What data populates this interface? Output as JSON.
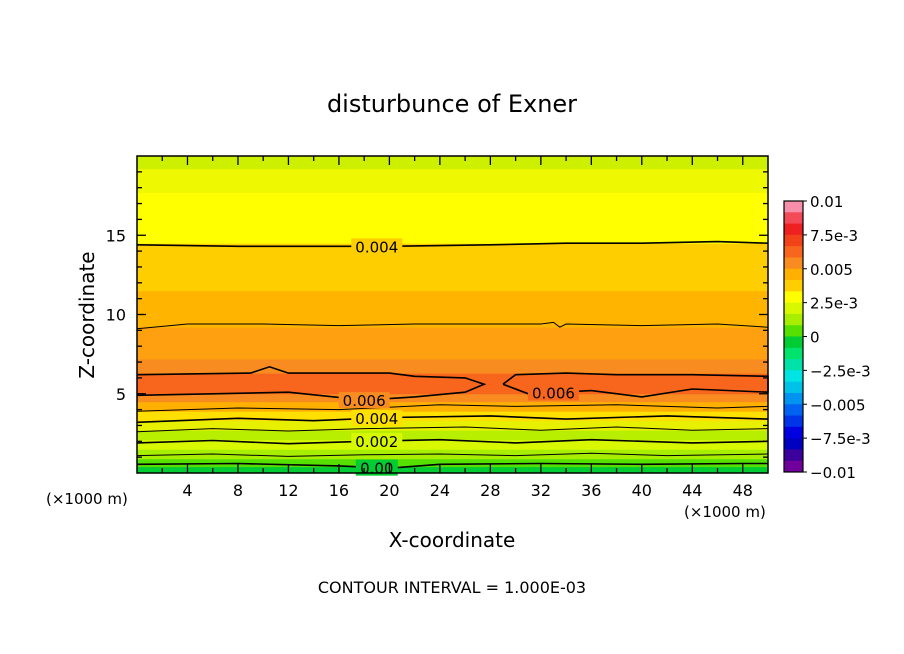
{
  "chart_data": {
    "type": "heatmap",
    "title": "disturbunce of Exner",
    "xlabel": "X-coordinate",
    "ylabel": "Z-coordinate",
    "x_unit_left": "(×1000 m)",
    "x_unit_right": "(×1000 m)",
    "xlim": [
      0,
      50
    ],
    "ylim": [
      0,
      20
    ],
    "x_ticks": [
      "4",
      "8",
      "12",
      "16",
      "20",
      "24",
      "28",
      "32",
      "36",
      "40",
      "44",
      "48"
    ],
    "y_ticks": [
      "5",
      "10",
      "15"
    ],
    "footer": "CONTOUR INTERVAL = 1.000E-03",
    "colorbar": {
      "labels": [
        "0.01",
        "7.5e-3",
        "0.005",
        "2.5e-3",
        "0",
        "−2.5e-3",
        "−0.005",
        "−7.5e-3",
        "−0.01"
      ],
      "range": [
        -0.01,
        0.01
      ],
      "colors": [
        "#f78faa",
        "#f24a56",
        "#ee2020",
        "#f2421a",
        "#f7661c",
        "#f98c20",
        "#ffb000",
        "#ffce00",
        "#ffff00",
        "#d8f800",
        "#a8ee00",
        "#55e000",
        "#00cc33",
        "#00e36c",
        "#00e2a8",
        "#00e4e4",
        "#00c1e8",
        "#0094f0",
        "#0062f0",
        "#0034e8",
        "#0000e0",
        "#0000c0",
        "#3c009c",
        "#70009c"
      ]
    },
    "bands": [
      {
        "z": [
          0.0,
          0.4
        ],
        "value": 0.0,
        "color": "#00cc33"
      },
      {
        "z": [
          0.4,
          0.9
        ],
        "value": 0.0005,
        "color": "#55e000"
      },
      {
        "z": [
          0.9,
          1.5
        ],
        "value": 0.0015,
        "color": "#a8ee00"
      },
      {
        "z": [
          1.5,
          2.1
        ],
        "value": 0.002,
        "color": "#d8f800"
      },
      {
        "z": [
          2.1,
          2.7
        ],
        "value": 0.0025,
        "color": "#b8ee00"
      },
      {
        "z": [
          2.7,
          3.3
        ],
        "value": 0.003,
        "color": "#e6f000"
      },
      {
        "z": [
          3.3,
          3.9
        ],
        "value": 0.004,
        "color": "#ffe000"
      },
      {
        "z": [
          3.9,
          4.5
        ],
        "value": 0.0045,
        "color": "#ffb000"
      },
      {
        "z": [
          4.5,
          5.0
        ],
        "value": 0.0055,
        "color": "#f98c20"
      },
      {
        "z": [
          5.0,
          6.3
        ],
        "value": 0.0065,
        "color": "#f7661c"
      },
      {
        "z": [
          6.3,
          7.2
        ],
        "value": 0.0058,
        "color": "#f98c20"
      },
      {
        "z": [
          7.2,
          9.2
        ],
        "value": 0.0052,
        "color": "#ffa010"
      },
      {
        "z": [
          9.2,
          11.5
        ],
        "value": 0.0048,
        "color": "#ffb400"
      },
      {
        "z": [
          11.5,
          14.5
        ],
        "value": 0.0042,
        "color": "#ffce00"
      },
      {
        "z": [
          14.5,
          17.7
        ],
        "value": 0.0036,
        "color": "#ffff00"
      },
      {
        "z": [
          17.7,
          19.2
        ],
        "value": 0.003,
        "color": "#eef800"
      },
      {
        "z": [
          19.2,
          20.0
        ],
        "value": 0.0025,
        "color": "#ccf000"
      }
    ],
    "contours": [
      {
        "level": 0.0,
        "label": "0.00",
        "label_x": 19,
        "points": [
          [
            0,
            0.55
          ],
          [
            8,
            0.6
          ],
          [
            16,
            0.45
          ],
          [
            20,
            0.3
          ],
          [
            24,
            0.55
          ],
          [
            32,
            0.6
          ],
          [
            40,
            0.55
          ],
          [
            48,
            0.6
          ],
          [
            50,
            0.6
          ]
        ]
      },
      {
        "level": 0.001,
        "label": "",
        "label_x": null,
        "points": [
          [
            0,
            1.1
          ],
          [
            6,
            1.2
          ],
          [
            12,
            1.05
          ],
          [
            18,
            1.15
          ],
          [
            24,
            1.2
          ],
          [
            30,
            1.1
          ],
          [
            36,
            1.25
          ],
          [
            42,
            1.1
          ],
          [
            50,
            1.2
          ]
        ]
      },
      {
        "level": 0.002,
        "label": "0.002",
        "label_x": 19,
        "points": [
          [
            0,
            1.9
          ],
          [
            6,
            2.05
          ],
          [
            12,
            1.85
          ],
          [
            18,
            2.0
          ],
          [
            24,
            2.1
          ],
          [
            30,
            1.9
          ],
          [
            36,
            2.1
          ],
          [
            44,
            1.9
          ],
          [
            50,
            2.0
          ]
        ]
      },
      {
        "level": 0.003,
        "label": "",
        "label_x": null,
        "points": [
          [
            0,
            2.6
          ],
          [
            6,
            2.8
          ],
          [
            12,
            2.65
          ],
          [
            18,
            2.8
          ],
          [
            26,
            2.9
          ],
          [
            32,
            2.7
          ],
          [
            38,
            2.9
          ],
          [
            44,
            2.7
          ],
          [
            50,
            2.8
          ]
        ]
      },
      {
        "level": 0.004,
        "label": "0.004",
        "label_x": 19,
        "points": [
          [
            0,
            3.2
          ],
          [
            8,
            3.45
          ],
          [
            14,
            3.3
          ],
          [
            20,
            3.5
          ],
          [
            28,
            3.6
          ],
          [
            34,
            3.4
          ],
          [
            42,
            3.6
          ],
          [
            50,
            3.4
          ]
        ]
      },
      {
        "level": 0.005,
        "label": "",
        "label_x": null,
        "points": [
          [
            0,
            3.9
          ],
          [
            8,
            4.1
          ],
          [
            16,
            4.0
          ],
          [
            24,
            4.3
          ],
          [
            30,
            4.2
          ],
          [
            38,
            4.3
          ],
          [
            46,
            4.1
          ],
          [
            50,
            4.2
          ]
        ]
      },
      {
        "level": 0.006,
        "label": "0.006",
        "label_x": 18,
        "points": [
          [
            0,
            4.9
          ],
          [
            6,
            5.0
          ],
          [
            12,
            5.1
          ],
          [
            18,
            4.6
          ],
          [
            22,
            4.8
          ],
          [
            26,
            5.1
          ],
          [
            27.5,
            5.6
          ],
          [
            26,
            6.0
          ],
          [
            22,
            6.1
          ],
          [
            20,
            6.3
          ],
          [
            12,
            6.3
          ],
          [
            10.5,
            6.7
          ],
          [
            9,
            6.3
          ],
          [
            0,
            6.2
          ]
        ]
      },
      {
        "level": 0.006,
        "label": "0.006",
        "label_x": 33,
        "points": [
          [
            29,
            5.6
          ],
          [
            31,
            5.0
          ],
          [
            36,
            5.2
          ],
          [
            40,
            4.8
          ],
          [
            44,
            5.3
          ],
          [
            50,
            5.1
          ],
          [
            50,
            6.1
          ],
          [
            44,
            6.2
          ],
          [
            38,
            6.2
          ],
          [
            34,
            6.3
          ],
          [
            30,
            6.2
          ],
          [
            29,
            5.6
          ]
        ]
      },
      {
        "level": 0.005,
        "label": "",
        "label_x": null,
        "points": [
          [
            0,
            9.1
          ],
          [
            4,
            9.4
          ],
          [
            10,
            9.4
          ],
          [
            16,
            9.3
          ],
          [
            22,
            9.4
          ],
          [
            28,
            9.4
          ],
          [
            32,
            9.4
          ],
          [
            33,
            9.5
          ],
          [
            33.5,
            9.2
          ],
          [
            34,
            9.4
          ],
          [
            40,
            9.3
          ],
          [
            46,
            9.4
          ],
          [
            50,
            9.2
          ]
        ]
      },
      {
        "level": 0.004,
        "label": "0.004",
        "label_x": 19,
        "points": [
          [
            0,
            14.4
          ],
          [
            8,
            14.3
          ],
          [
            14,
            14.3
          ],
          [
            20,
            14.3
          ],
          [
            28,
            14.4
          ],
          [
            34,
            14.5
          ],
          [
            40,
            14.5
          ],
          [
            46,
            14.6
          ],
          [
            50,
            14.5
          ]
        ]
      }
    ]
  }
}
